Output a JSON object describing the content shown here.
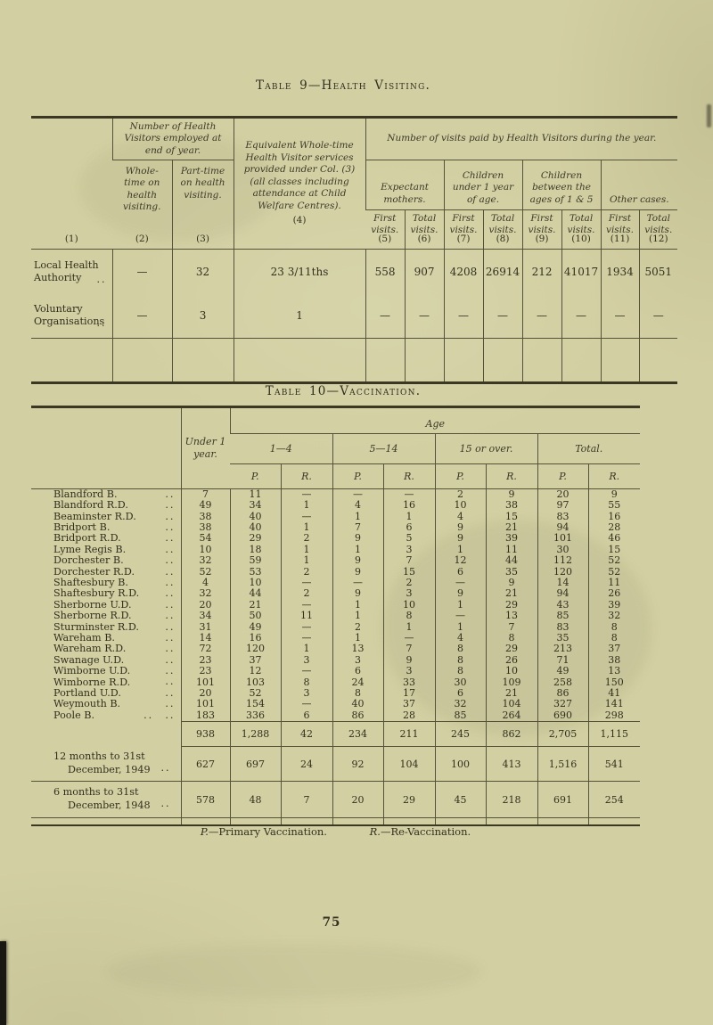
{
  "page": {
    "number": "75"
  },
  "table9": {
    "title": "Table 9—Health Visiting.",
    "header": {
      "col1_number": "(1)",
      "visitors_banner": "Number of Health Visitors employed at end of year.",
      "col2_text": "Whole-time on health visiting.",
      "col2_number": "(2)",
      "col3_text": "Part-time on health visiting.",
      "col3_number": "(3)",
      "col4_text": "Equivalent Whole-time Health Visitor services provided under Col. (3) (all classes including attendance at Child Welfare Centres).",
      "col4_number": "(4)",
      "visits_banner": "Number of visits paid by Health Visitors during the year.",
      "groups": [
        "Expectant mothers.",
        "Children under 1 year of age.",
        "Children between the ages of 1 & 5",
        "Other cases."
      ],
      "sub_cols": [
        {
          "label": "First visits.",
          "number": "(5)"
        },
        {
          "label": "Total visits.",
          "number": "(6)"
        },
        {
          "label": "First visits.",
          "number": "(7)"
        },
        {
          "label": "Total visits.",
          "number": "(8)"
        },
        {
          "label": "First visits.",
          "number": "(9)"
        },
        {
          "label": "Total visits.",
          "number": "(10)"
        },
        {
          "label": "First visits.",
          "number": "(11)"
        },
        {
          "label": "Total visits.",
          "number": "(12)"
        }
      ]
    },
    "rows": [
      {
        "label": "Local Health Authority",
        "dots": "..",
        "values": [
          "—",
          "32",
          "23 3/11ths",
          "558",
          "907",
          "4208",
          "26914",
          "212",
          "41017",
          "1934",
          "5051"
        ]
      },
      {
        "label": "Voluntary Organisations",
        "dots": "..",
        "values": [
          "—",
          "3",
          "1",
          "—",
          "—",
          "—",
          "—",
          "—",
          "—",
          "—",
          "—"
        ]
      }
    ]
  },
  "table10": {
    "title": "Table 10—Vaccination.",
    "header": {
      "age_label": "Age",
      "under_1_year": "Under 1 year.",
      "groups": [
        "1—4",
        "5—14",
        "15 or over.",
        "Total."
      ],
      "pr": [
        "P.",
        "R."
      ]
    },
    "districts": [
      {
        "label": "Blandford B.",
        "dots": "..",
        "values": [
          "7",
          "11",
          "—",
          "—",
          "—",
          "2",
          "9",
          "20",
          "9"
        ]
      },
      {
        "label": "Blandford R.D.",
        "dots": "..",
        "values": [
          "49",
          "34",
          "1",
          "4",
          "16",
          "10",
          "38",
          "97",
          "55"
        ]
      },
      {
        "label": "Beaminster R.D.",
        "dots": "..",
        "values": [
          "38",
          "40",
          "—",
          "1",
          "1",
          "4",
          "15",
          "83",
          "16"
        ]
      },
      {
        "label": "Bridport B.",
        "dots": "..",
        "values": [
          "38",
          "40",
          "1",
          "7",
          "6",
          "9",
          "21",
          "94",
          "28"
        ]
      },
      {
        "label": "Bridport R.D.",
        "dots": "..",
        "values": [
          "54",
          "29",
          "2",
          "9",
          "5",
          "9",
          "39",
          "101",
          "46"
        ]
      },
      {
        "label": "Lyme Regis B.",
        "dots": "..",
        "values": [
          "10",
          "18",
          "1",
          "1",
          "3",
          "1",
          "11",
          "30",
          "15"
        ]
      },
      {
        "label": "Dorchester B.",
        "dots": "..",
        "values": [
          "32",
          "59",
          "1",
          "9",
          "7",
          "12",
          "44",
          "112",
          "52"
        ]
      },
      {
        "label": "Dorchester R.D.",
        "dots": "..",
        "values": [
          "52",
          "53",
          "2",
          "9",
          "15",
          "6",
          "35",
          "120",
          "52"
        ]
      },
      {
        "label": "Shaftesbury B.",
        "dots": "..",
        "values": [
          "4",
          "10",
          "—",
          "—",
          "2",
          "—",
          "9",
          "14",
          "11"
        ]
      },
      {
        "label": "Shaftesbury R.D.",
        "dots": "..",
        "values": [
          "32",
          "44",
          "2",
          "9",
          "3",
          "9",
          "21",
          "94",
          "26"
        ]
      },
      {
        "label": "Sherborne U.D.",
        "dots": "..",
        "values": [
          "20",
          "21",
          "—",
          "1",
          "10",
          "1",
          "29",
          "43",
          "39"
        ]
      },
      {
        "label": "Sherborne R.D.",
        "dots": "..",
        "values": [
          "34",
          "50",
          "11",
          "1",
          "8",
          "—",
          "13",
          "85",
          "32"
        ]
      },
      {
        "label": "Sturminster R.D.",
        "dots": "..",
        "values": [
          "31",
          "49",
          "—",
          "2",
          "1",
          "1",
          "7",
          "83",
          "8"
        ]
      },
      {
        "label": "Wareham B.",
        "dots": "..",
        "values": [
          "14",
          "16",
          "—",
          "1",
          "—",
          "4",
          "8",
          "35",
          "8"
        ]
      },
      {
        "label": "Wareham R.D.",
        "dots": "..",
        "values": [
          "72",
          "120",
          "1",
          "13",
          "7",
          "8",
          "29",
          "213",
          "37"
        ]
      },
      {
        "label": "Swanage U.D.",
        "dots": "..",
        "values": [
          "23",
          "37",
          "3",
          "3",
          "9",
          "8",
          "26",
          "71",
          "38"
        ]
      },
      {
        "label": "Wimborne U.D.",
        "dots": "..",
        "values": [
          "23",
          "12",
          "—",
          "6",
          "3",
          "8",
          "10",
          "49",
          "13"
        ]
      },
      {
        "label": "Wimborne R.D.",
        "dots": "..",
        "values": [
          "101",
          "103",
          "8",
          "24",
          "33",
          "30",
          "109",
          "258",
          "150"
        ]
      },
      {
        "label": "Portland U.D.",
        "dots": "..",
        "values": [
          "20",
          "52",
          "3",
          "8",
          "17",
          "6",
          "21",
          "86",
          "41"
        ]
      },
      {
        "label": "Weymouth B.",
        "dots": "..",
        "values": [
          "101",
          "154",
          "—",
          "40",
          "37",
          "32",
          "104",
          "327",
          "141"
        ]
      },
      {
        "label": "Poole B.",
        "dots": ".. ..",
        "values": [
          "183",
          "336",
          "6",
          "86",
          "28",
          "85",
          "264",
          "690",
          "298"
        ]
      }
    ],
    "total_row": [
      "938",
      "1,288",
      "42",
      "234",
      "211",
      "245",
      "862",
      "2,705",
      "1,115"
    ],
    "summary_rows": [
      {
        "label": "12 months to 31st December, 1949",
        "dots": "..",
        "values": [
          "627",
          "697",
          "24",
          "92",
          "104",
          "100",
          "413",
          "1,516",
          "541"
        ]
      },
      {
        "label": "6 months to 31st December, 1948",
        "dots": "..",
        "values": [
          "578",
          "48",
          "7",
          "20",
          "29",
          "45",
          "218",
          "691",
          "254"
        ]
      }
    ],
    "footnote": {
      "p_label": "P.",
      "p_text": "—Primary Vaccination.",
      "r_label": "R.",
      "r_text": "—Re-Vaccination."
    }
  }
}
